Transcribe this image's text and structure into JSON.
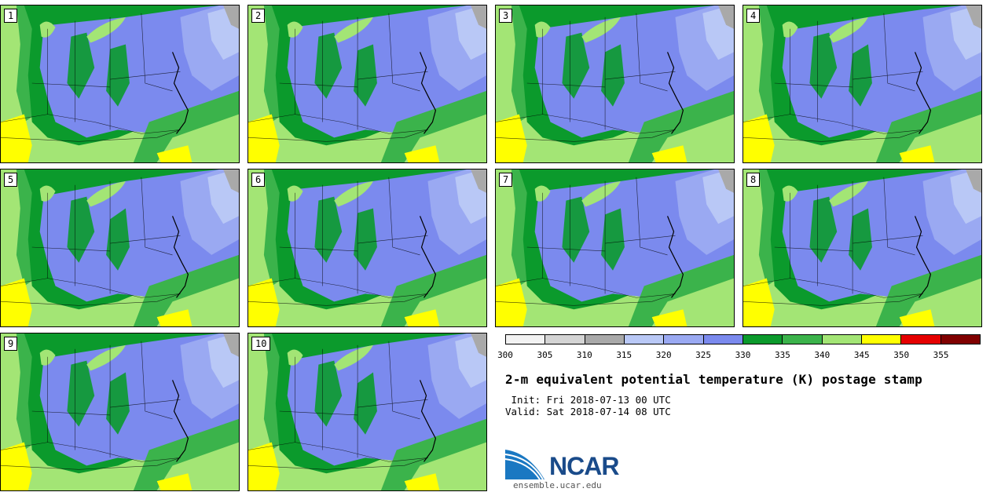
{
  "panels": [
    {
      "label": "1"
    },
    {
      "label": "2"
    },
    {
      "label": "3"
    },
    {
      "label": "4"
    },
    {
      "label": "5"
    },
    {
      "label": "6"
    },
    {
      "label": "7"
    },
    {
      "label": "8"
    },
    {
      "label": "9"
    },
    {
      "label": "10"
    }
  ],
  "colorbar": {
    "ticks": [
      "300",
      "305",
      "310",
      "315",
      "320",
      "325",
      "330",
      "335",
      "340",
      "345",
      "350",
      "355"
    ],
    "colors": [
      "#f2f2f2",
      "#d4d4d4",
      "#a9a9a9",
      "#b9c8f6",
      "#9aa9f2",
      "#7b8aee",
      "#0b9a2c",
      "#3bb34b",
      "#a3e575",
      "#ffff00",
      "#e50000",
      "#800000"
    ]
  },
  "map_colors": {
    "blue_dark": "#7b8aee",
    "blue_mid": "#9aa9f2",
    "blue_light": "#b9c8f6",
    "green_dark": "#0b9a2c",
    "green_mid": "#3bb34b",
    "green_light": "#a3e575",
    "yellow": "#ffff00",
    "gray": "#a9a9a9"
  },
  "title": "2-m equivalent potential temperature (K) postage stamp",
  "init_line": " Init: Fri 2018-07-13 00 UTC",
  "valid_line": "Valid: Sat 2018-07-14 08 UTC",
  "logo": {
    "text": "NCAR",
    "icon": "ncar-logo-icon"
  },
  "site": "ensemble.ucar.edu"
}
